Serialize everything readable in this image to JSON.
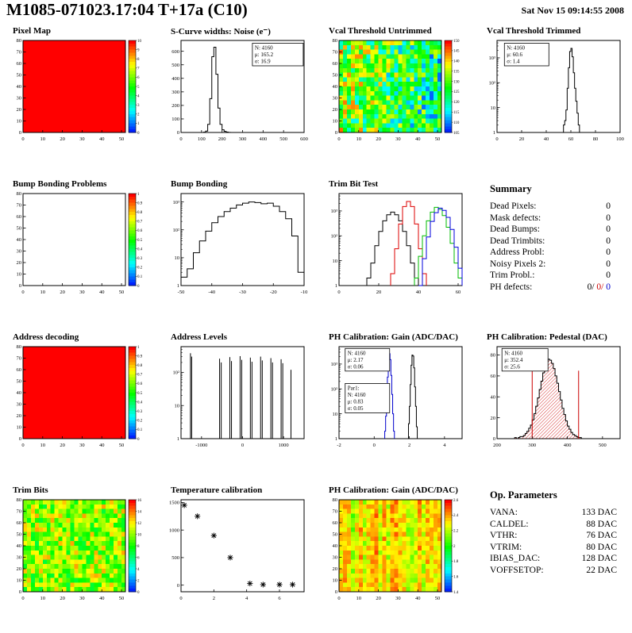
{
  "page": {
    "title": "M1085-071023.17:04 T+17a (C10)",
    "date": "Sat Nov 15 09:14:55 2008"
  },
  "summary": {
    "title": "Summary",
    "rows": [
      {
        "label": "Dead Pixels:",
        "value": "0"
      },
      {
        "label": "Mask defects:",
        "value": "0"
      },
      {
        "label": "Dead Bumps:",
        "value": "0"
      },
      {
        "label": "Dead Trimbits:",
        "value": "0"
      },
      {
        "label": "Address Probl:",
        "value": "0"
      },
      {
        "label": "Noisy Pixels 2:",
        "value": "0"
      },
      {
        "label": "Trim Probl.:",
        "value": "0"
      }
    ],
    "ph": {
      "label": "PH defects:",
      "black": "0/",
      "red": "0/",
      "blue": "0"
    }
  },
  "op_parameters": {
    "title": "Op. Parameters",
    "rows": [
      {
        "label": "VANA:",
        "value": "133 DAC"
      },
      {
        "label": "CALDEL:",
        "value": "88 DAC"
      },
      {
        "label": "VTHR:",
        "value": "76 DAC"
      },
      {
        "label": "VTRIM:",
        "value": "80 DAC"
      },
      {
        "label": "IBIAS_DAC:",
        "value": "128 DAC"
      },
      {
        "label": "VOFFSETOP:",
        "value": "22 DAC"
      }
    ]
  },
  "chart_data": [
    {
      "type": "heatmap",
      "title": "Pixel Map",
      "xlim": [
        0,
        52
      ],
      "ylim": [
        0,
        80
      ],
      "xticks": [
        0,
        10,
        20,
        30,
        40,
        50
      ],
      "yticks": [
        0,
        10,
        20,
        30,
        40,
        50,
        60,
        70,
        80
      ],
      "heat": {
        "mode": "uniform",
        "value": 10
      },
      "colorbar": {
        "min": 0,
        "max": 10,
        "ticks": [
          0,
          1,
          2,
          3,
          4,
          5,
          6,
          7,
          8,
          9,
          10
        ]
      }
    },
    {
      "type": "hist",
      "title": "S-Curve widths: Noise (e⁻)",
      "xlim": [
        0,
        600
      ],
      "xticks": [
        0,
        100,
        200,
        300,
        400,
        500,
        600
      ],
      "ylim": [
        0,
        680
      ],
      "yticks": [
        0,
        100,
        200,
        300,
        400,
        500,
        600
      ],
      "series": [
        {
          "color": "#000000",
          "x0": 100,
          "binw": 10,
          "counts": [
            0,
            2,
            10,
            60,
            250,
            560,
            630,
            430,
            180,
            60,
            20,
            8,
            3,
            1
          ]
        }
      ],
      "stats": [
        {
          "at": [
            0.58,
            0.03
          ],
          "w": 64,
          "lines": [
            {
              "t": "N: 4160",
              "c": "#000000"
            },
            {
              "t": "μ: 165.2",
              "c": "#000000"
            },
            {
              "t": "σ: 16.9",
              "c": "#000000"
            }
          ]
        }
      ]
    },
    {
      "type": "heatmap",
      "title": "Vcal Threshold Untrimmed",
      "xlim": [
        0,
        52
      ],
      "ylim": [
        0,
        80
      ],
      "xticks": [
        0,
        10,
        20,
        30,
        40,
        50
      ],
      "yticks": [
        0,
        10,
        20,
        30,
        40,
        50,
        60,
        70,
        80
      ],
      "heat": {
        "mode": "noise",
        "min": 118,
        "max": 146,
        "xgrad": -10,
        "seed": 7
      },
      "colorbar": {
        "min": 105,
        "max": 150,
        "ticks": [
          105,
          110,
          115,
          120,
          125,
          130,
          135,
          140,
          145,
          150
        ]
      }
    },
    {
      "type": "hist",
      "title": "Vcal Threshold Trimmed",
      "logy": true,
      "xlim": [
        0,
        100
      ],
      "xticks": [
        0,
        20,
        40,
        60,
        80,
        100
      ],
      "ylim": [
        1,
        5000
      ],
      "series": [
        {
          "color": "#000000",
          "x0": 52,
          "binw": 1,
          "counts": [
            1,
            0,
            2,
            3,
            8,
            60,
            400,
            1800,
            2400,
            1100,
            250,
            60,
            18,
            6,
            2,
            1
          ]
        }
      ],
      "stats": [
        {
          "at": [
            0.06,
            0.03
          ],
          "w": 56,
          "lines": [
            {
              "t": "N: 4160",
              "c": "#000000"
            },
            {
              "t": "μ: 60.6",
              "c": "#000000"
            },
            {
              "t": "σ: 1.4",
              "c": "#000000"
            }
          ]
        }
      ]
    },
    {
      "type": "heatmap",
      "title": "Bump Bonding Problems",
      "xlim": [
        0,
        52
      ],
      "ylim": [
        0,
        80
      ],
      "xticks": [
        0,
        10,
        20,
        30,
        40,
        50
      ],
      "yticks": [
        0,
        10,
        20,
        30,
        40,
        50,
        60,
        70,
        80
      ],
      "heat": {
        "mode": "empty"
      },
      "colorbar": {
        "min": 0,
        "max": 1,
        "ticks": [
          0,
          0.1,
          0.2,
          0.3,
          0.4,
          0.5,
          0.6,
          0.7,
          0.8,
          0.9,
          1
        ]
      }
    },
    {
      "type": "hist",
      "title": "Bump Bonding",
      "logy": true,
      "xlim": [
        -50,
        -10
      ],
      "xticks": [
        -50,
        -40,
        -30,
        -20,
        -10
      ],
      "ylim": [
        1,
        2000
      ],
      "series": [
        {
          "color": "#000000",
          "x0": -50,
          "binw": 2,
          "counts": [
            2,
            4,
            15,
            40,
            90,
            180,
            300,
            450,
            600,
            780,
            900,
            1000,
            950,
            860,
            900,
            700,
            450,
            250,
            60,
            3
          ]
        }
      ]
    },
    {
      "type": "hist",
      "title": "Trim Bit Test",
      "logy": true,
      "xlim": [
        0,
        62
      ],
      "xticks": [
        0,
        20,
        40,
        60
      ],
      "ylim": [
        1,
        5000
      ],
      "series": [
        {
          "color": "#000000",
          "x0": 14,
          "binw": 2,
          "counts": [
            2,
            8,
            40,
            150,
            400,
            700,
            900,
            700,
            400,
            150,
            40,
            8,
            2
          ]
        },
        {
          "color": "#dd0000",
          "x0": 26,
          "binw": 2,
          "counts": [
            3,
            30,
            300,
            1500,
            2400,
            1500,
            300,
            30,
            3
          ]
        },
        {
          "color": "#00bb00",
          "x0": 38,
          "binw": 2,
          "counts": [
            2,
            15,
            100,
            400,
            900,
            1400,
            1150,
            650,
            220,
            50,
            8,
            2
          ]
        },
        {
          "color": "#0000dd",
          "x0": 40,
          "binw": 2,
          "counts": [
            1,
            12,
            90,
            380,
            850,
            1300,
            1050,
            550,
            180,
            35,
            5
          ]
        }
      ]
    },
    {
      "type": "heatmap",
      "title": "Address decoding",
      "xlim": [
        0,
        52
      ],
      "ylim": [
        0,
        80
      ],
      "xticks": [
        0,
        10,
        20,
        30,
        40,
        50
      ],
      "yticks": [
        0,
        10,
        20,
        30,
        40,
        50,
        60,
        70,
        80
      ],
      "heat": {
        "mode": "uniform",
        "value": 1
      },
      "colorbar": {
        "min": 0,
        "max": 1,
        "ticks": [
          0,
          0.1,
          0.2,
          0.3,
          0.4,
          0.5,
          0.6,
          0.7,
          0.8,
          0.9,
          1
        ]
      }
    },
    {
      "type": "spikes",
      "title": "Address Levels",
      "logy": true,
      "xlim": [
        -1500,
        1500
      ],
      "xticks": [
        -1000,
        0,
        1000
      ],
      "ylim": [
        1,
        600
      ],
      "spikes": [
        [
          -1270,
          380
        ],
        [
          -1240,
          300
        ],
        [
          -560,
          260
        ],
        [
          -520,
          200
        ],
        [
          -310,
          290
        ],
        [
          -270,
          220
        ],
        [
          -60,
          310
        ],
        [
          -20,
          240
        ],
        [
          190,
          280
        ],
        [
          230,
          210
        ],
        [
          440,
          300
        ],
        [
          480,
          230
        ],
        [
          690,
          270
        ],
        [
          730,
          200
        ],
        [
          940,
          250
        ],
        [
          980,
          190
        ],
        [
          1180,
          120
        ]
      ]
    },
    {
      "type": "hist",
      "title": "PH Calibration: Gain (ADC/DAC)",
      "logy": true,
      "xlim": [
        -2,
        5
      ],
      "xticks": [
        -2,
        0,
        2,
        4
      ],
      "ylim": [
        1,
        5000
      ],
      "series": [
        {
          "color": "#0000cc",
          "x0": 0.6,
          "binw": 0.05,
          "counts": [
            2,
            8,
            40,
            300,
            1800,
            2600,
            1500,
            350,
            60,
            10,
            2
          ]
        },
        {
          "color": "#000000",
          "x0": 1.9,
          "binw": 0.05,
          "counts": [
            1,
            4,
            20,
            150,
            900,
            2300,
            2100,
            700,
            120,
            20,
            3
          ]
        }
      ],
      "stats": [
        {
          "at": [
            0.05,
            0.02
          ],
          "w": 56,
          "lines": [
            {
              "t": "N: 4160",
              "c": "#000000"
            },
            {
              "t": "μ: 2.17",
              "c": "#000000"
            },
            {
              "t": "σ: 0.06",
              "c": "#000000"
            }
          ]
        },
        {
          "at": [
            0.05,
            0.4
          ],
          "w": 56,
          "lines": [
            {
              "t": "Par1:",
              "c": "#0000cc"
            },
            {
              "t": "N: 4160",
              "c": "#0000cc"
            },
            {
              "t": "μ: 0.83",
              "c": "#0000cc"
            },
            {
              "t": "σ: 0.05",
              "c": "#0000cc"
            }
          ]
        }
      ]
    },
    {
      "type": "hist",
      "title": "PH Calibration: Pedestal (DAC)",
      "xlim": [
        200,
        550
      ],
      "xticks": [
        200,
        300,
        400,
        500
      ],
      "ylim": [
        0,
        88
      ],
      "yticks": [
        0,
        20,
        40,
        60,
        80
      ],
      "series": [
        {
          "color": "#000000",
          "fill": "redhatch",
          "x0": 240,
          "binw": 5,
          "counts": [
            0,
            0,
            1,
            0,
            1,
            2,
            2,
            3,
            5,
            7,
            10,
            13,
            18,
            24,
            31,
            39,
            47,
            55,
            63,
            69,
            74,
            76,
            75,
            72,
            67,
            60,
            53,
            45,
            37,
            29,
            23,
            17,
            12,
            9,
            6,
            4,
            3,
            2,
            1,
            1
          ]
        }
      ],
      "lines": [
        {
          "x": 300,
          "y": 65,
          "color": "#cc0000"
        },
        {
          "x": 432,
          "y": 65,
          "color": "#cc0000"
        }
      ],
      "stats": [
        {
          "at": [
            0.04,
            0.02
          ],
          "w": 58,
          "lines": [
            {
              "t": "N: 4160",
              "c": "#000000"
            },
            {
              "t": "μ: 352.4",
              "c": "#cc0000"
            },
            {
              "t": "σ: 25.6",
              "c": "#cc0000"
            }
          ]
        }
      ]
    },
    {
      "type": "heatmap",
      "title": "Trim Bits",
      "xlim": [
        0,
        52
      ],
      "ylim": [
        0,
        80
      ],
      "xticks": [
        0,
        10,
        20,
        30,
        40,
        50
      ],
      "yticks": [
        0,
        10,
        20,
        30,
        40,
        50,
        60,
        70,
        80
      ],
      "heat": {
        "mode": "noise",
        "min": 7,
        "max": 13.5,
        "seed": 21
      },
      "colorbar": {
        "min": 0,
        "max": 16,
        "ticks": [
          0,
          2,
          4,
          6,
          8,
          10,
          12,
          14,
          16
        ]
      }
    },
    {
      "type": "scatter",
      "title": "Temperature calibration",
      "xlim": [
        0,
        7.5
      ],
      "xticks": [
        0,
        2,
        4,
        6
      ],
      "ylim": [
        -120,
        1550
      ],
      "yticks": [
        0,
        500,
        1000,
        1500
      ],
      "points": [
        [
          0.2,
          1450
        ],
        [
          1,
          1250
        ],
        [
          2,
          900
        ],
        [
          3,
          500
        ],
        [
          4.2,
          30
        ],
        [
          5,
          10
        ],
        [
          6,
          10
        ],
        [
          6.8,
          10
        ]
      ]
    },
    {
      "type": "heatmap",
      "title": "PH Calibration: Gain (ADC/DAC)",
      "xlim": [
        0,
        52
      ],
      "ylim": [
        0,
        80
      ],
      "xticks": [
        0,
        10,
        20,
        30,
        40,
        50
      ],
      "yticks": [
        0,
        10,
        20,
        30,
        40,
        50,
        60,
        70,
        80
      ],
      "heat": {
        "mode": "colnoise",
        "min": 2.05,
        "max": 2.55,
        "seed": 33
      },
      "colorbar": {
        "min": 1.4,
        "max": 2.6,
        "ticks": [
          1.4,
          1.6,
          1.8,
          2,
          2.2,
          2.4,
          2.6
        ]
      }
    }
  ]
}
